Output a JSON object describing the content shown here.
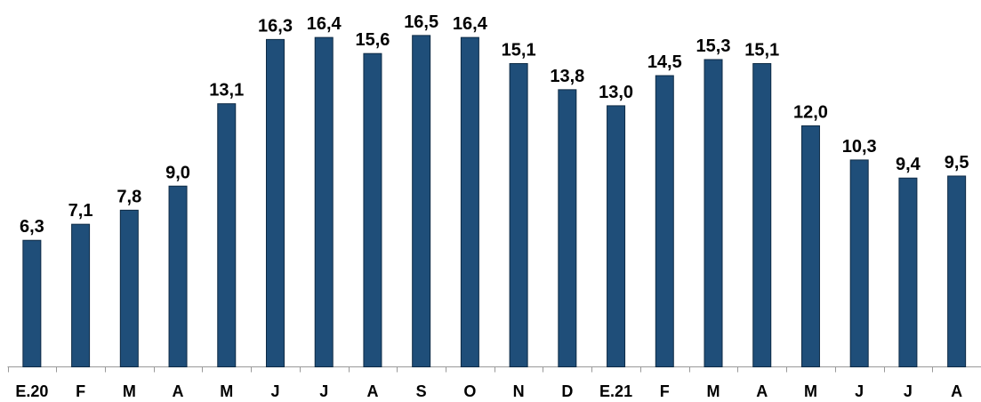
{
  "chart_data": {
    "type": "bar",
    "categories": [
      "E.20",
      "F",
      "M",
      "A",
      "M",
      "J",
      "J",
      "A",
      "S",
      "O",
      "N",
      "D",
      "E.21",
      "F",
      "M",
      "A",
      "M",
      "J",
      "J",
      "A"
    ],
    "values": [
      6.3,
      7.1,
      7.8,
      9.0,
      13.1,
      16.3,
      16.4,
      15.6,
      16.5,
      16.4,
      15.1,
      13.8,
      13.0,
      14.5,
      15.3,
      15.1,
      12.0,
      10.3,
      9.4,
      9.5
    ],
    "value_labels": [
      "6,3",
      "7,1",
      "7,8",
      "9,0",
      "13,1",
      "16,3",
      "16,4",
      "15,6",
      "16,5",
      "16,4",
      "15,1",
      "13,8",
      "13,0",
      "14,5",
      "15,3",
      "15,1",
      "12,0",
      "10,3",
      "9,4",
      "9,5"
    ],
    "color": "#1f4e79",
    "ylim": [
      0,
      18
    ]
  }
}
